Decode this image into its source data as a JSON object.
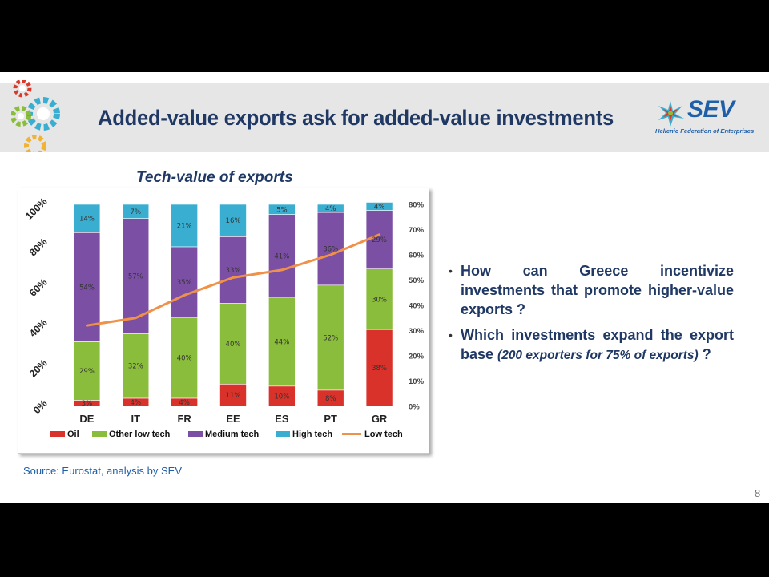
{
  "title": "Added-value exports ask for added-value investments",
  "logo": {
    "name": "SEV",
    "subtitle": "Hellenic Federation of Enterprises"
  },
  "chart_title": "Tech-value of exports",
  "source": "Source: Eurostat, analysis by SEV",
  "bullets": [
    {
      "text": "How can Greece incentivize investments that promote higher-value exports ?",
      "em": "",
      "tail": ""
    },
    {
      "text": "Which investments expand the export base ",
      "em": "(200 exporters for 75% of exports)",
      "tail": " ?"
    }
  ],
  "page_number": "8",
  "colors": {
    "title": "#1f3864",
    "oil": "#d9322b",
    "other_low_tech": "#8bbd3c",
    "medium_tech": "#7b4fa3",
    "high_tech": "#3aaed1",
    "low_tech": "#f0914a",
    "link": "#1f5fa8"
  },
  "chart_data": {
    "type": "bar",
    "stacked": true,
    "title": "Tech-value of exports",
    "categories": [
      "DE",
      "IT",
      "FR",
      "EE",
      "ES",
      "PT",
      "GR"
    ],
    "series": [
      {
        "name": "Oil",
        "values": [
          3,
          4,
          4,
          11,
          10,
          8,
          38
        ],
        "labels": [
          "3%",
          "4%",
          "4%",
          "11%",
          "10%",
          "8%",
          "38%"
        ]
      },
      {
        "name": "Other low tech",
        "values": [
          29,
          32,
          40,
          40,
          44,
          52,
          30
        ],
        "labels": [
          "29%",
          "32%",
          "40%",
          "40%",
          "44%",
          "52%",
          "30%"
        ]
      },
      {
        "name": "Medium tech",
        "values": [
          54,
          57,
          35,
          33,
          41,
          36,
          29
        ],
        "labels": [
          "54%",
          "57%",
          "35%",
          "33%",
          "41%",
          "36%",
          "29%"
        ]
      },
      {
        "name": "High tech",
        "values": [
          14,
          7,
          21,
          16,
          5,
          4,
          4
        ],
        "labels": [
          "14%",
          "7%",
          "21%",
          "16%",
          "5%",
          "4%",
          "4%"
        ]
      }
    ],
    "line_series": {
      "name": "Low tech",
      "axis": "right",
      "values": [
        32,
        35,
        44,
        51,
        54,
        60,
        68
      ]
    },
    "y_left": {
      "ticks": [
        "0%",
        "20%",
        "40%",
        "60%",
        "80%",
        "100%"
      ],
      "range": [
        0,
        100
      ]
    },
    "y_right": {
      "ticks": [
        "0%",
        "10%",
        "20%",
        "30%",
        "40%",
        "50%",
        "60%",
        "70%",
        "80%"
      ],
      "range": [
        0,
        80
      ]
    },
    "legend": [
      "Oil",
      "Other low tech",
      "Medium tech",
      "High tech",
      "Low tech"
    ],
    "legend_position": "bottom"
  }
}
